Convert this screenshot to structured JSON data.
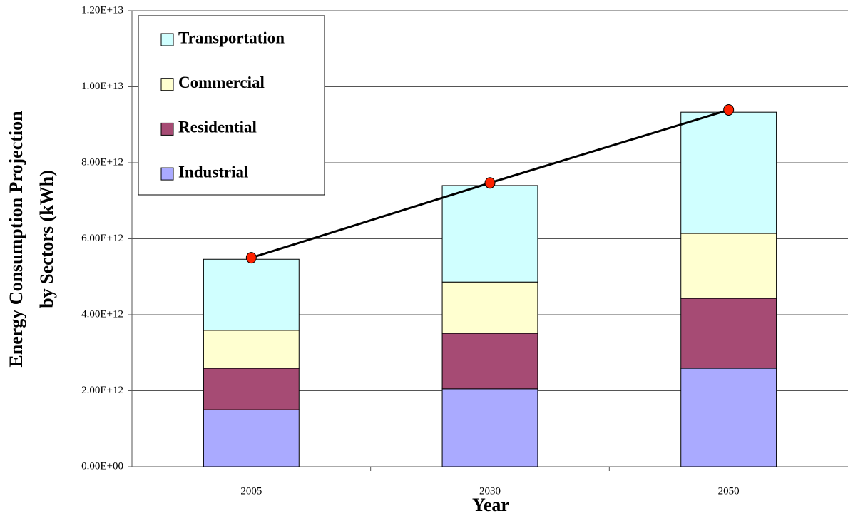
{
  "chart_data": {
    "type": "stacked_bar",
    "xlabel": "Year",
    "ylabel": [
      "Energy Consumption Projection",
      "by Sectors (kWh)"
    ],
    "categories": [
      "2005",
      "2030",
      "2050"
    ],
    "series": [
      {
        "name": "Industrial",
        "color": "#aaaaff",
        "values": [
          1500000000000.0,
          2050000000000.0,
          2590000000000.0
        ]
      },
      {
        "name": "Residential",
        "color": "#a64b74",
        "values": [
          1090000000000.0,
          1460000000000.0,
          1840000000000.0
        ]
      },
      {
        "name": "Commercial",
        "color": "#ffffd0",
        "values": [
          1000000000000.0,
          1350000000000.0,
          1710000000000.0
        ]
      },
      {
        "name": "Transportation",
        "color": "#d0ffff",
        "values": [
          1870000000000.0,
          2540000000000.0,
          3190000000000.0
        ]
      }
    ],
    "line": {
      "color": "#000000",
      "marker_color": "#ff2200",
      "values": [
        5500000000000.0,
        7470000000000.0,
        9390000000000.0
      ]
    },
    "ylim": [
      0,
      12000000000000.0
    ],
    "yticks": [
      {
        "value": 0,
        "label": "0.00E+00"
      },
      {
        "value": 2000000000000.0,
        "label": "2.00E+12"
      },
      {
        "value": 4000000000000.0,
        "label": "4.00E+12"
      },
      {
        "value": 6000000000000.0,
        "label": "6.00E+12"
      },
      {
        "value": 8000000000000.0,
        "label": "8.00E+12"
      },
      {
        "value": 10000000000000.0,
        "label": "1.00E+13"
      },
      {
        "value": 12000000000000.0,
        "label": "1.20E+13"
      }
    ],
    "grid": true,
    "legend": "upper left"
  }
}
